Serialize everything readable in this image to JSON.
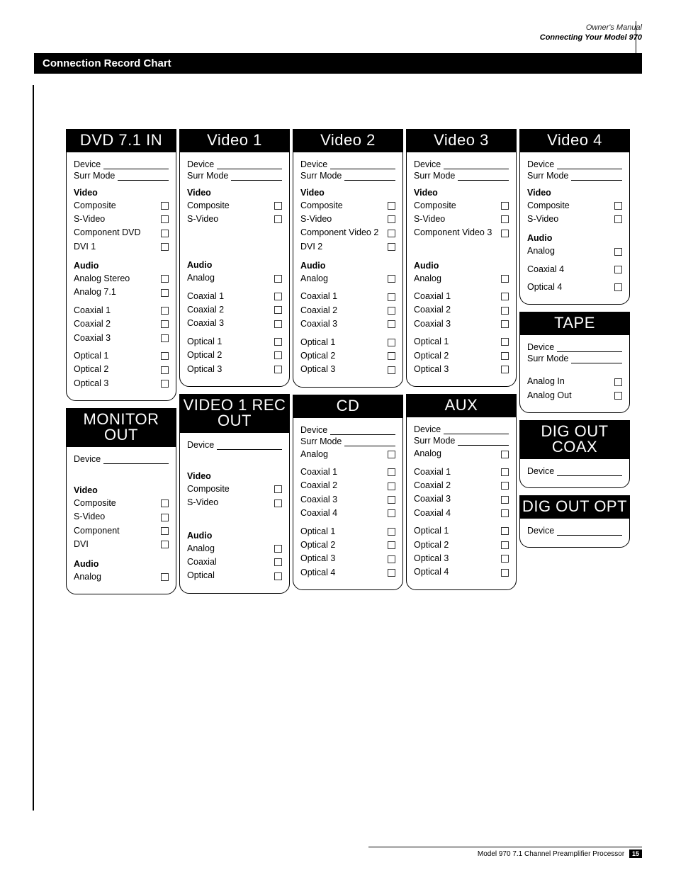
{
  "header": {
    "subtitle": "Owner's Manual",
    "title": "Connecting Your Model 970"
  },
  "bar_title": "Connection Record Chart",
  "labels": {
    "device": "Device",
    "surr_mode": "Surr Mode",
    "video": "Video",
    "audio": "Audio"
  },
  "columns": [
    [
      {
        "title": "DVD 7.1 IN",
        "has_device": true,
        "has_surr": true,
        "groups": [
          {
            "heading": "Video",
            "items": [
              "Composite",
              "S-Video",
              "Component DVD",
              "DVI 1"
            ]
          },
          {
            "heading": "Audio",
            "items": [
              "Analog Stereo",
              "Analog 7.1"
            ],
            "gap_after": true
          },
          {
            "items": [
              "Coaxial 1",
              "Coaxial 2",
              "Coaxial 3"
            ],
            "gap_after": true
          },
          {
            "items": [
              "Optical 1",
              "Optical 2",
              "Optical 3"
            ]
          }
        ]
      },
      {
        "title": "MONITOR OUT",
        "has_device": true,
        "has_surr": false,
        "extra_gap": true,
        "groups": [
          {
            "heading": "Video",
            "items": [
              "Composite",
              "S-Video",
              "Component",
              "DVI"
            ]
          },
          {
            "heading": "Audio",
            "items": [
              "Analog"
            ]
          }
        ]
      }
    ],
    [
      {
        "title": "Video 1",
        "has_device": true,
        "has_surr": true,
        "groups": [
          {
            "heading": "Video",
            "items": [
              "Composite",
              "S-Video"
            ],
            "pad_after": 2
          },
          {
            "heading": "Audio",
            "items": [
              "Analog"
            ],
            "gap_after": true
          },
          {
            "items": [
              "Coaxial 1",
              "Coaxial 2",
              "Coaxial 3"
            ],
            "gap_after": true
          },
          {
            "items": [
              "Optical 1",
              "Optical 2",
              "Optical 3"
            ]
          }
        ]
      },
      {
        "title": "VIDEO 1 REC OUT",
        "has_device": true,
        "has_surr": false,
        "extra_gap": true,
        "groups": [
          {
            "heading": "Video",
            "items": [
              "Composite",
              "S-Video"
            ],
            "pad_after": 1
          },
          {
            "heading": "Audio",
            "items": [
              "Analog",
              "Coaxial",
              "Optical"
            ]
          }
        ]
      }
    ],
    [
      {
        "title": "Video 2",
        "has_device": true,
        "has_surr": true,
        "groups": [
          {
            "heading": "Video",
            "items": [
              "Composite",
              "S-Video",
              "Component Video 2",
              "DVI 2"
            ]
          },
          {
            "heading": "Audio",
            "items": [
              "Analog"
            ],
            "gap_after": true
          },
          {
            "items": [
              "Coaxial 1",
              "Coaxial 2",
              "Coaxial 3"
            ],
            "gap_after": true
          },
          {
            "items": [
              "Optical 1",
              "Optical 2",
              "Optical 3"
            ]
          }
        ]
      },
      {
        "title": "CD",
        "has_device": true,
        "has_surr": true,
        "groups": [
          {
            "items": [
              "Analog"
            ],
            "gap_after": true
          },
          {
            "items": [
              "Coaxial 1",
              "Coaxial 2",
              "Coaxial 3",
              "Coaxial 4"
            ],
            "gap_after": true
          },
          {
            "items": [
              "Optical 1",
              "Optical 2",
              "Optical 3",
              "Optical 4"
            ]
          }
        ]
      }
    ],
    [
      {
        "title": "Video 3",
        "has_device": true,
        "has_surr": true,
        "groups": [
          {
            "heading": "Video",
            "items": [
              "Composite",
              "S-Video",
              "Component Video 3"
            ],
            "pad_after": 1
          },
          {
            "heading": "Audio",
            "items": [
              "Analog"
            ],
            "gap_after": true
          },
          {
            "items": [
              "Coaxial 1",
              "Coaxial 2",
              "Coaxial 3"
            ],
            "gap_after": true
          },
          {
            "items": [
              "Optical 1",
              "Optical 2",
              "Optical 3"
            ]
          }
        ]
      },
      {
        "title": "AUX",
        "has_device": true,
        "has_surr": true,
        "groups": [
          {
            "items": [
              "Analog"
            ],
            "gap_after": true
          },
          {
            "items": [
              "Coaxial 1",
              "Coaxial 2",
              "Coaxial 3",
              "Coaxial 4"
            ],
            "gap_after": true
          },
          {
            "items": [
              "Optical 1",
              "Optical 2",
              "Optical 3",
              "Optical 4"
            ]
          }
        ]
      }
    ],
    [
      {
        "title": "Video 4",
        "has_device": true,
        "has_surr": true,
        "groups": [
          {
            "heading": "Video",
            "items": [
              "Composite",
              "S-Video"
            ]
          },
          {
            "heading": "Audio",
            "items": [
              "Analog"
            ],
            "gap_after": true
          },
          {
            "items": [
              "Coaxial 4"
            ],
            "gap_after": true
          },
          {
            "items": [
              "Optical 4"
            ]
          }
        ]
      },
      {
        "title": "TAPE",
        "has_device": true,
        "has_surr": true,
        "groups": [
          {
            "items": [
              "Analog In",
              "Analog Out"
            ],
            "lead_gap": true
          }
        ]
      },
      {
        "title": "DIG OUT COAX",
        "has_device": true,
        "has_surr": false,
        "groups": []
      },
      {
        "title": "DIG OUT OPT",
        "has_device": true,
        "has_surr": false,
        "groups": []
      }
    ]
  ],
  "footer": {
    "text": "Model 970 7.1 Channel Preamplifier Processor",
    "page": "15"
  }
}
